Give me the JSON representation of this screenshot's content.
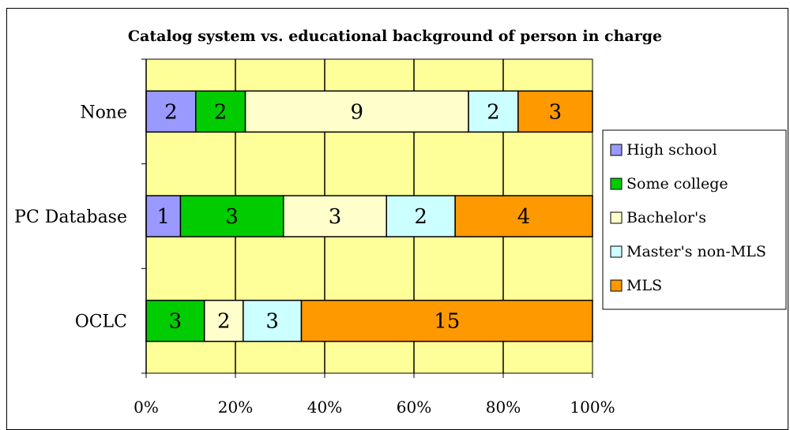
{
  "chart_data": {
    "type": "bar",
    "orientation": "horizontal",
    "stacked": "percent",
    "title": "Catalog system vs. educational background of person in charge",
    "categories": [
      "None",
      "PC Database",
      "OCLC"
    ],
    "series": [
      {
        "name": "High school",
        "color": "#9999ff",
        "values": [
          2,
          1,
          0
        ]
      },
      {
        "name": "Some college",
        "color": "#00cc00",
        "values": [
          2,
          3,
          3
        ]
      },
      {
        "name": "Bachelor's",
        "color": "#ffffcc",
        "values": [
          9,
          3,
          2
        ]
      },
      {
        "name": "Master's non-MLS",
        "color": "#ccffff",
        "values": [
          2,
          2,
          3
        ]
      },
      {
        "name": "MLS",
        "color": "#ff9900",
        "values": [
          3,
          4,
          15
        ]
      }
    ],
    "x_tick_labels": [
      "0%",
      "20%",
      "40%",
      "60%",
      "80%",
      "100%"
    ],
    "xlim": [
      0,
      100
    ],
    "grid": "vertical",
    "legend_position": "right",
    "plot_background": "#ffff99"
  }
}
